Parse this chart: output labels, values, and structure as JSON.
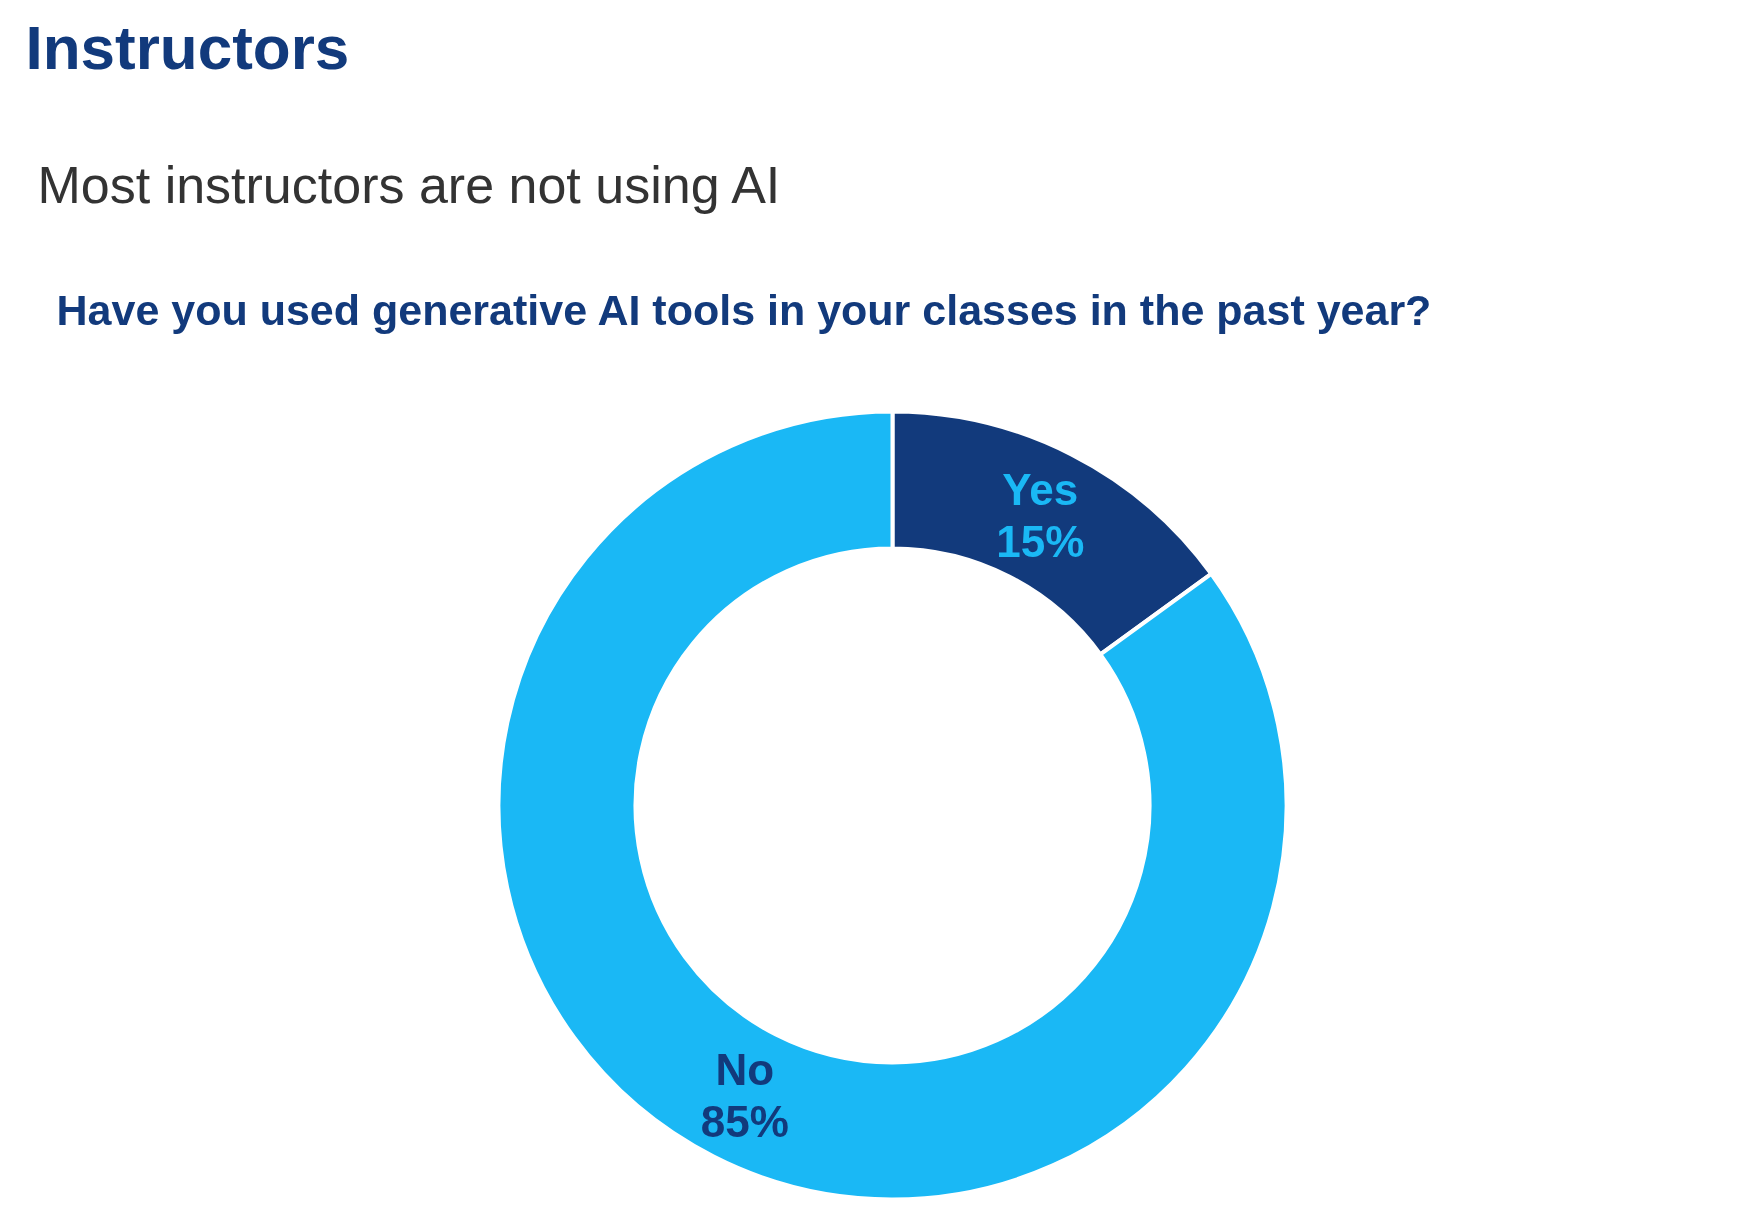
{
  "chart_data": {
    "type": "donut",
    "title": "Instructors",
    "subtitle": "Most instructors are not using AI",
    "annotations": [
      "Have you used generative AI tools in your classes in the past year?"
    ],
    "categories": [
      "Yes",
      "No"
    ],
    "values": [
      15,
      85
    ],
    "colors": [
      "#123a7c",
      "#1ab8f5"
    ],
    "value_labels": [
      "15%",
      "85%"
    ]
  }
}
